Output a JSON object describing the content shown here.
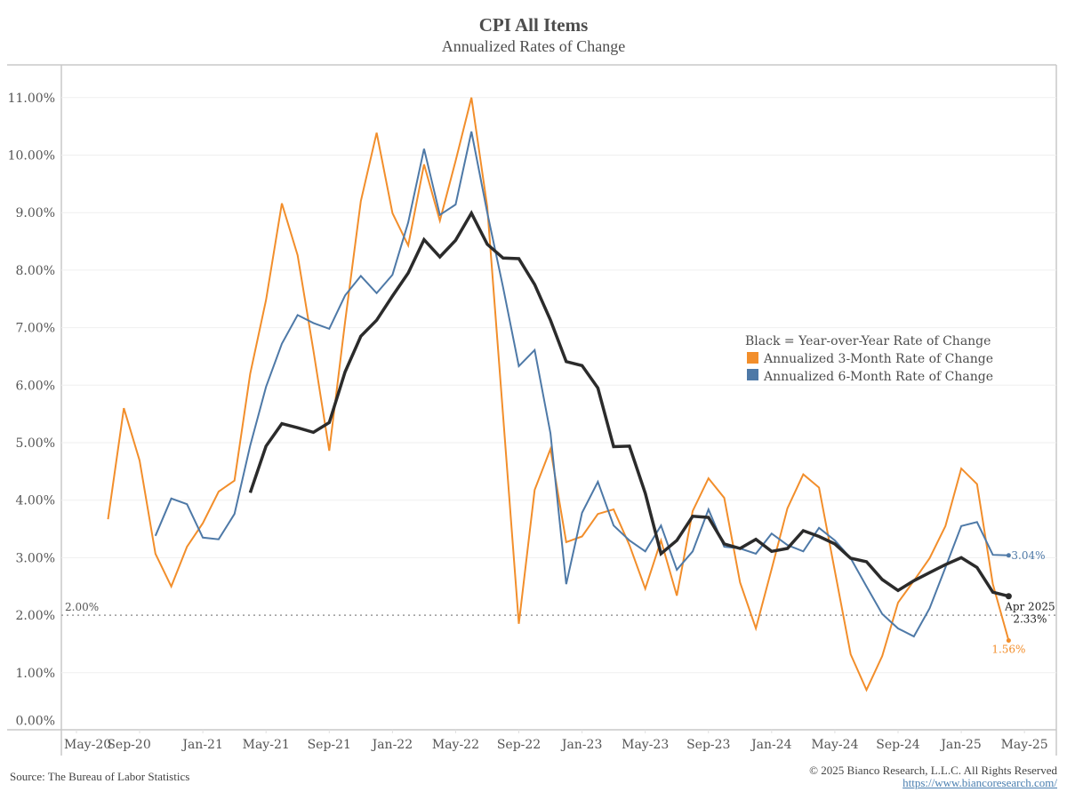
{
  "chart_data": {
    "type": "line",
    "title": "CPI All Items",
    "subtitle": "Annualized Rates of Change",
    "xlabel": "",
    "ylabel": "",
    "ylim": [
      0,
      11.5
    ],
    "y_ticks": [
      0,
      1,
      2,
      3,
      4,
      5,
      6,
      7,
      8,
      9,
      10,
      11
    ],
    "y_tick_labels": [
      "0.00%",
      "1.00%",
      "2.00%",
      "3.00%",
      "4.00%",
      "5.00%",
      "6.00%",
      "7.00%",
      "8.00%",
      "9.00%",
      "10.00%",
      "11.00%"
    ],
    "x_tick_labels": [
      "May-20",
      "Sep-20",
      "Jan-21",
      "May-21",
      "Sep-21",
      "Jan-22",
      "May-22",
      "Sep-22",
      "Jan-23",
      "May-23",
      "Sep-23",
      "Jan-24",
      "May-24",
      "Sep-24",
      "Jan-25",
      "May-25"
    ],
    "x_start": "Jul-20",
    "x_end": "Apr-25",
    "grid": true,
    "legend_position": "right-middle",
    "legend": {
      "note": "Black = Year-over-Year Rate of Change",
      "entries": [
        {
          "label": "Annualized 3-Month Rate of Change",
          "color": "#f28e2b"
        },
        {
          "label": "Annualized 6-Month Rate of Change",
          "color": "#4e79a7"
        }
      ]
    },
    "reference_line": {
      "value": 2.0,
      "label": "2.00%"
    },
    "series": [
      {
        "name": "Annualized 3-Month Rate of Change",
        "color": "#f28e2b",
        "start_index": 0,
        "values": [
          3.67,
          5.6,
          4.69,
          3.07,
          2.5,
          3.19,
          3.6,
          4.15,
          4.34,
          6.2,
          7.48,
          9.16,
          8.26,
          6.6,
          4.86,
          7.1,
          9.2,
          10.39,
          8.99,
          8.43,
          9.84,
          8.86,
          9.9,
          11.0,
          9.1,
          5.47,
          1.85,
          4.18,
          4.89,
          3.27,
          3.37,
          3.76,
          3.84,
          3.22,
          2.46,
          3.3,
          2.34,
          3.81,
          4.38,
          4.04,
          2.57,
          1.77,
          2.8,
          3.86,
          4.45,
          4.22,
          2.77,
          1.32,
          0.7,
          1.29,
          2.22,
          2.6,
          2.99,
          3.55,
          4.55,
          4.28,
          2.54,
          1.56
        ],
        "end_label": "1.56%"
      },
      {
        "name": "Annualized 6-Month Rate of Change",
        "color": "#4e79a7",
        "start_index": 3,
        "values": [
          3.38,
          4.03,
          3.93,
          3.35,
          3.32,
          3.76,
          4.95,
          5.97,
          6.72,
          7.22,
          7.08,
          6.98,
          7.56,
          7.9,
          7.6,
          7.92,
          8.83,
          10.11,
          8.96,
          9.14,
          10.41,
          9.0,
          7.7,
          6.33,
          6.61,
          5.16,
          2.54,
          3.78,
          4.32,
          3.56,
          3.3,
          3.11,
          3.56,
          2.79,
          3.11,
          3.84,
          3.19,
          3.16,
          3.07,
          3.42,
          3.22,
          3.11,
          3.52,
          3.3,
          2.99,
          2.5,
          2.02,
          1.77,
          1.63,
          2.12,
          2.83,
          3.55,
          3.62,
          3.05,
          3.04
        ],
        "end_label": "3.04%"
      },
      {
        "name": "Year-over-Year Rate of Change",
        "color": "#2b2b2b",
        "start_index": 9,
        "values": [
          4.13,
          4.94,
          5.33,
          5.26,
          5.18,
          5.35,
          6.23,
          6.85,
          7.13,
          7.55,
          7.95,
          8.53,
          8.23,
          8.52,
          8.99,
          8.45,
          8.21,
          8.2,
          7.75,
          7.13,
          6.41,
          6.34,
          5.95,
          4.93,
          4.94,
          4.12,
          3.07,
          3.3,
          3.72,
          3.7,
          3.24,
          3.16,
          3.32,
          3.11,
          3.16,
          3.47,
          3.37,
          3.24,
          2.99,
          2.93,
          2.62,
          2.43,
          2.6,
          2.74,
          2.88,
          3.0,
          2.83,
          2.4,
          2.33
        ],
        "end_label_date": "Apr 2025",
        "end_label": "2.33%"
      }
    ]
  },
  "footer": {
    "source": "Source: The Bureau of Labor Statistics",
    "copyright": "© 2025 Bianco Research, L.L.C. All Rights Reserved",
    "url": "https://www.biancoresearch.com/"
  }
}
